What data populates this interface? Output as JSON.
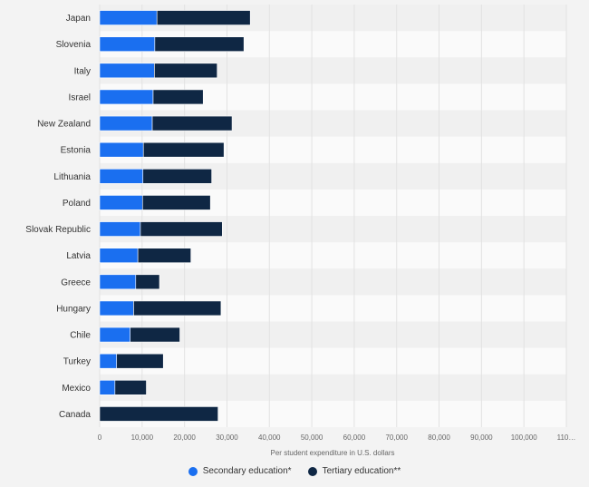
{
  "chart_data": {
    "type": "bar",
    "orientation": "horizontal",
    "stacked": true,
    "categories": [
      "Japan",
      "Slovenia",
      "Italy",
      "Israel",
      "New Zealand",
      "Estonia",
      "Lithuania",
      "Poland",
      "Slovak Republic",
      "Latvia",
      "Greece",
      "Hungary",
      "Chile",
      "Turkey",
      "Mexico",
      "Canada"
    ],
    "series": [
      {
        "name": "Secondary education*",
        "color": "#1a6ff0",
        "values": [
          13500,
          13000,
          12900,
          12600,
          12400,
          10300,
          10200,
          10100,
          9600,
          9000,
          8500,
          8000,
          7200,
          4000,
          3600,
          0
        ]
      },
      {
        "name": "Tertiary education**",
        "color": "#0f2744",
        "values": [
          22000,
          21000,
          14800,
          11800,
          18800,
          19000,
          16200,
          16000,
          19300,
          12500,
          5600,
          20600,
          11700,
          11000,
          7400,
          27900
        ]
      }
    ],
    "x_ticks": [
      "0",
      "10,000",
      "20,000",
      "30,000",
      "40,000",
      "50,000",
      "60,000",
      "70,000",
      "80,000",
      "90,000",
      "100,000",
      "110…"
    ],
    "xlim": [
      0,
      110000
    ],
    "xlabel": "Per student expenditure in U.S. dollars",
    "grid": true,
    "legend_position": "bottom"
  }
}
